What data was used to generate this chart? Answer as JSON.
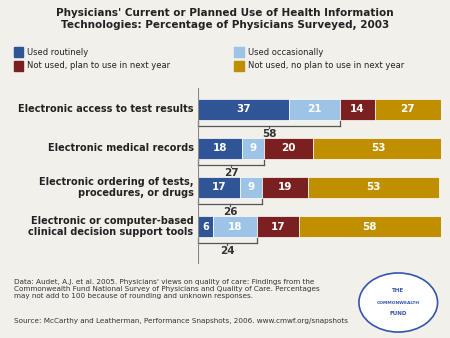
{
  "title": "Physicians' Current or Planned Use of Health Information\nTechnologies: Percentage of Physicians Surveyed, 2003",
  "categories": [
    "Electronic access to test results",
    "Electronic medical records",
    "Electronic ordering of tests,\nprocedures, or drugs",
    "Electronic or computer-based\nclinical decision support tools"
  ],
  "series": {
    "Used routinely": [
      37,
      18,
      17,
      6
    ],
    "Used occasionally": [
      21,
      9,
      9,
      18
    ],
    "Not used, plan to use in next year": [
      14,
      20,
      19,
      17
    ],
    "Not used, no plan to use in next year": [
      27,
      53,
      53,
      58
    ]
  },
  "brace_spans": [
    58,
    27,
    26,
    24
  ],
  "brace_labels": [
    "58",
    "27",
    "26",
    "24"
  ],
  "colors": {
    "Used routinely": "#2F5597",
    "Used occasionally": "#9DC3E6",
    "Not used, plan to use in next year": "#7B2020",
    "Not used, no plan to use in next year": "#BF8F00"
  },
  "legend_order": [
    "Used routinely",
    "Used occasionally",
    "Not used, plan to use in next year",
    "Not used, no plan to use in next year"
  ],
  "footnote_data": "Data: Audet, A.J. et al. 2005. ",
  "footnote_italic": "Physicians' views on quality of care: Findings from the\nCommonwealth Fund National Survey of Physicians and Quality of Care.",
  "footnote_normal": " Percentages\nmay not add to 100 because of rounding and unknown responses.",
  "footnote_source": "Source: McCarthy and Leatherman, Performance Snapshots, 2006. www.cmwf.org/snapshots",
  "bg_color": "#F2F0EA",
  "bar_height": 0.52,
  "label_fontsize": 7.0,
  "bar_label_fontsize": 7.5,
  "total_bar_width": 99
}
